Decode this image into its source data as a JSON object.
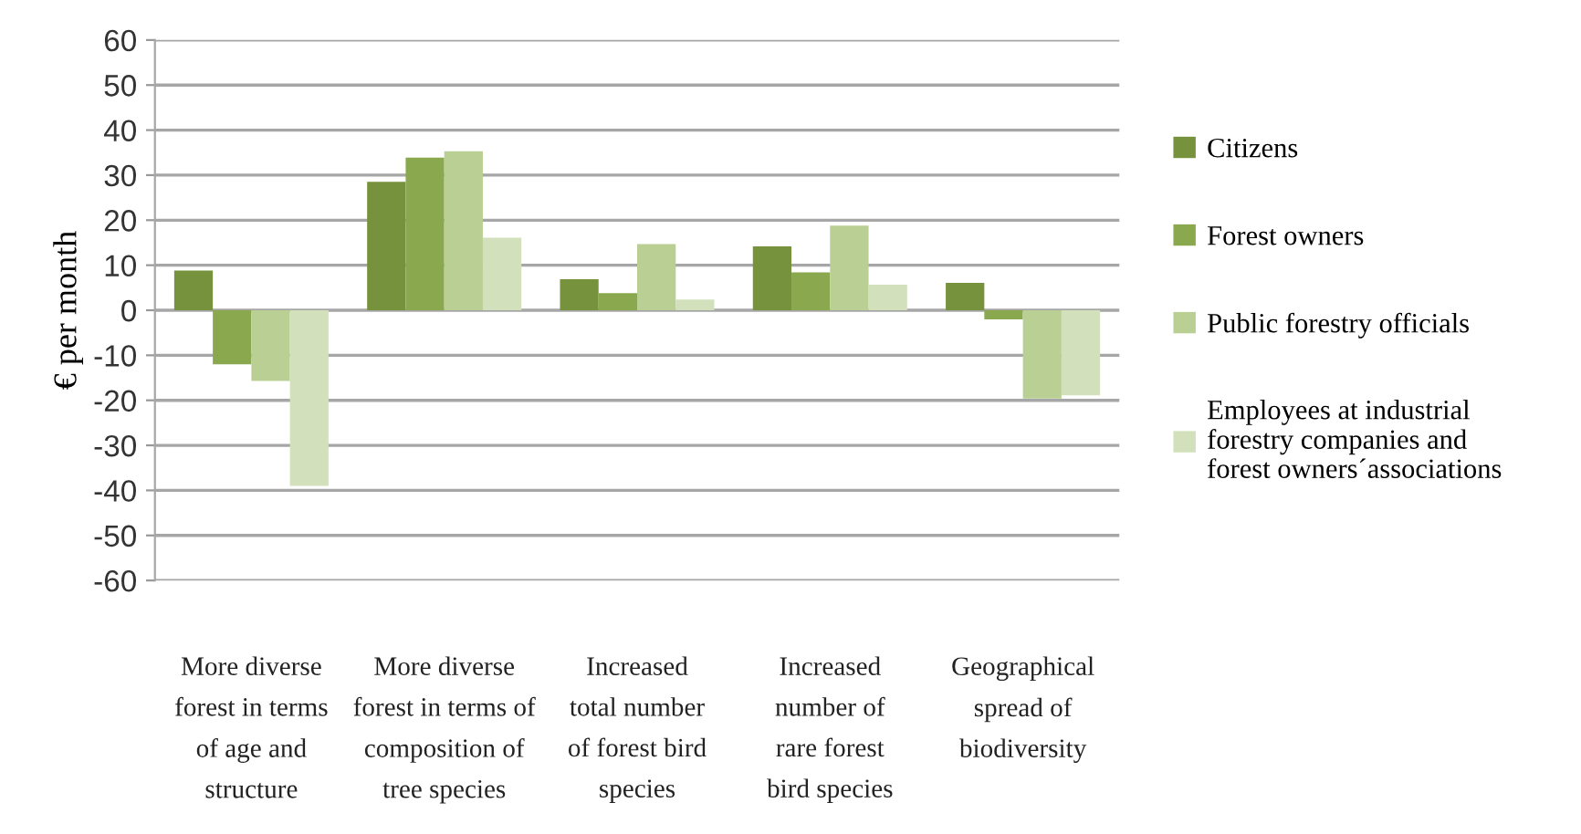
{
  "chart_data": {
    "type": "bar",
    "ylabel": "€ per month",
    "categories": [
      "More diverse\nforest in terms\nof age and\nstructure",
      "More diverse\nforest in terms of\ncomposition of\ntree species",
      "Increased\ntotal number\nof forest bird\nspecies",
      "Increased\nnumber of\nrare forest\nbird species",
      "Geographical\nspread of\nbiodiversity"
    ],
    "series": [
      {
        "name": "Citizens",
        "color": "#76923c",
        "values": [
          8.8,
          28.5,
          6.9,
          14.2,
          6.1
        ]
      },
      {
        "name": "Forest owners",
        "color": "#8aa84e",
        "values": [
          -12,
          33.9,
          3.8,
          8.4,
          -2
        ]
      },
      {
        "name": "Public forestry officials",
        "color": "#b9cf93",
        "values": [
          -15.7,
          35.3,
          14.7,
          18.8,
          -19.6
        ]
      },
      {
        "name": "Employees at industrial\nforestry companies and\nforest owners´associations",
        "color": "#d2e0bb",
        "values": [
          -39,
          16.1,
          2.4,
          5.7,
          -18.9
        ]
      }
    ],
    "ylim": [
      -60,
      60
    ],
    "yticks": [
      -60,
      -50,
      -40,
      -30,
      -20,
      -10,
      0,
      10,
      20,
      30,
      40,
      50,
      60
    ],
    "grid": "y",
    "legend": "right"
  }
}
